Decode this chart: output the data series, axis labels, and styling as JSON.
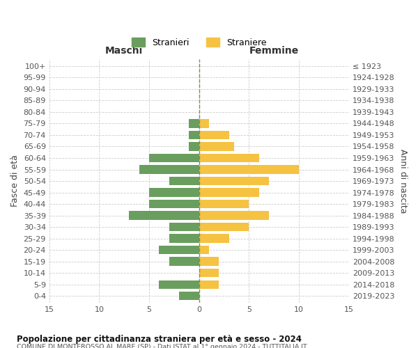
{
  "age_groups": [
    "0-4",
    "5-9",
    "10-14",
    "15-19",
    "20-24",
    "25-29",
    "30-34",
    "35-39",
    "40-44",
    "45-49",
    "50-54",
    "55-59",
    "60-64",
    "65-69",
    "70-74",
    "75-79",
    "80-84",
    "85-89",
    "90-94",
    "95-99",
    "100+"
  ],
  "birth_years": [
    "2019-2023",
    "2014-2018",
    "2009-2013",
    "2004-2008",
    "1999-2003",
    "1994-1998",
    "1989-1993",
    "1984-1988",
    "1979-1983",
    "1974-1978",
    "1969-1973",
    "1964-1968",
    "1959-1963",
    "1954-1958",
    "1949-1953",
    "1944-1948",
    "1939-1943",
    "1934-1938",
    "1929-1933",
    "1924-1928",
    "≤ 1923"
  ],
  "males": [
    2,
    4,
    0,
    3,
    4,
    3,
    3,
    7,
    5,
    5,
    3,
    6,
    5,
    1,
    1,
    1,
    0,
    0,
    0,
    0,
    0
  ],
  "females": [
    0,
    2,
    2,
    2,
    1,
    3,
    5,
    7,
    5,
    6,
    7,
    10,
    6,
    3.5,
    3,
    1,
    0,
    0,
    0,
    0,
    0
  ],
  "male_color": "#6a9e5e",
  "female_color": "#f5c242",
  "male_label": "Stranieri",
  "female_label": "Straniere",
  "xlabel_left": "Maschi",
  "xlabel_right": "Femmine",
  "ylabel_left": "Fasce di età",
  "ylabel_right": "Anni di nascita",
  "title_main": "Popolazione per cittadinanza straniera per età e sesso - 2024",
  "title_sub": "COMUNE DI MONTEROSSO AL MARE (SP) - Dati ISTAT al 1° gennaio 2024 - TUTTITALIA.IT",
  "xlim": 15,
  "background_color": "#ffffff",
  "grid_color": "#cccccc",
  "tick_color": "#555555"
}
